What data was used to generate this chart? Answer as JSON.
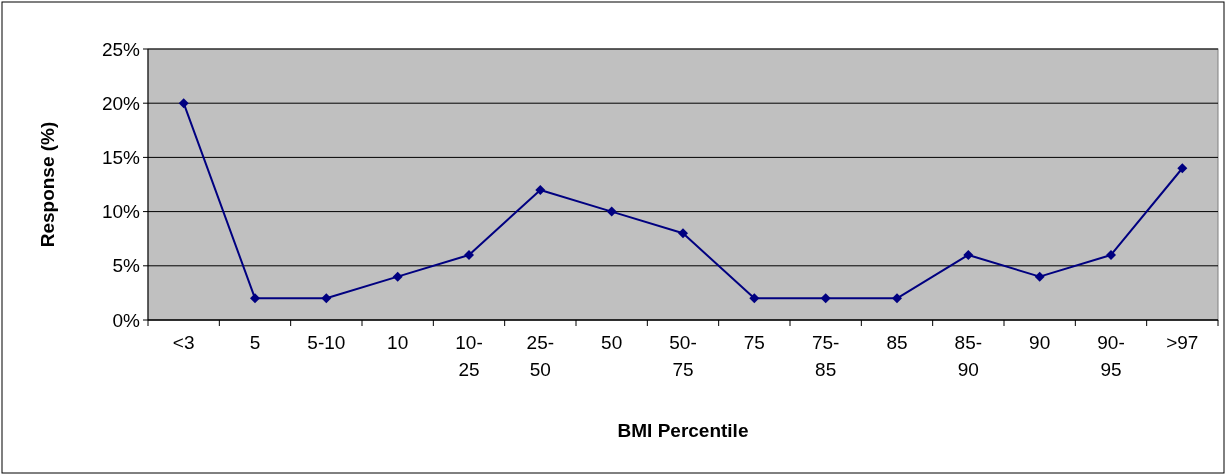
{
  "chart_data": {
    "type": "line",
    "xlabel": "BMI Percentile",
    "ylabel": "Response (%)",
    "categories": [
      "<3",
      "5",
      "5-10",
      "10",
      "10-25",
      "25-50",
      "50",
      "50-75",
      "75",
      "75-85",
      "85",
      "85-90",
      "90",
      "90-95",
      ">97"
    ],
    "series": [
      {
        "color": "#000080",
        "values": [
          20,
          2,
          2,
          4,
          6,
          12,
          10,
          8,
          2,
          2,
          2,
          6,
          4,
          6,
          14
        ]
      }
    ],
    "ylim": [
      0,
      25
    ],
    "yticks": [
      {
        "value": 0,
        "label": "0%"
      },
      {
        "value": 5,
        "label": "5%"
      },
      {
        "value": 10,
        "label": "10%"
      },
      {
        "value": 15,
        "label": "15%"
      },
      {
        "value": 20,
        "label": "20%"
      },
      {
        "value": 25,
        "label": "25%"
      }
    ],
    "grid": "y",
    "marker": "diamond"
  }
}
